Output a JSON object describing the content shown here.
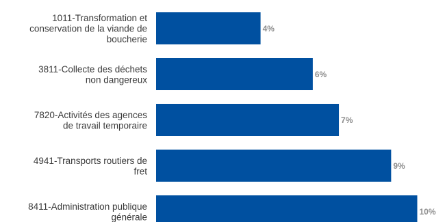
{
  "chart_data": {
    "type": "bar",
    "orientation": "horizontal",
    "categories": [
      "1011-Transformation et conservation de la viande de boucherie",
      "3811-Collecte des déchets non dangereux",
      "7820-Activités des agences de travail temporaire",
      "4941-Transports routiers de fret",
      "8411-Administration publique générale"
    ],
    "category_label_lines": [
      [
        "1011-Transformation et",
        "conservation de la viande de",
        "boucherie"
      ],
      [
        "3811-Collecte des déchets",
        "non dangereux"
      ],
      [
        "7820-Activités des agences",
        "de travail temporaire"
      ],
      [
        "4941-Transports routiers de",
        "fret"
      ],
      [
        "8411-Administration publique",
        "générale"
      ]
    ],
    "values": [
      4,
      6,
      7,
      9,
      10
    ],
    "value_labels": [
      "4%",
      "6%",
      "7%",
      "9%",
      "10%"
    ],
    "unit": "%",
    "title": "",
    "xlabel": "",
    "ylabel": "",
    "xlim": [
      0,
      10.8
    ],
    "grid": false,
    "legend": "none",
    "colors": {
      "bar": "#0050A0",
      "value_label": "#8C8C8C",
      "category_label": "#3A3A3A"
    }
  }
}
